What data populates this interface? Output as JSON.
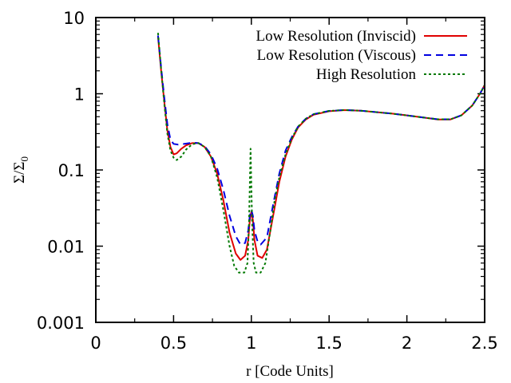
{
  "chart_data": {
    "type": "line",
    "xlabel": "r [Code Units]",
    "ylabel": "Σ/Σ",
    "ylabel_sub": "0",
    "xlim": [
      0,
      2.5
    ],
    "ylim": [
      0.001,
      10
    ],
    "yscale": "log",
    "x_ticks": [
      0,
      0.5,
      1,
      1.5,
      2,
      2.5
    ],
    "x_tick_labels": [
      "0",
      "0.5",
      "1",
      "1.5",
      "2",
      "2.5"
    ],
    "y_ticks": [
      0.001,
      0.01,
      0.1,
      1,
      10
    ],
    "y_tick_labels": [
      "0.001",
      "0.01",
      "0.1",
      "1",
      "10"
    ],
    "grid": false,
    "legend_position": "top-right",
    "series": [
      {
        "name": "Low Resolution (Inviscid)",
        "color": "#e00000",
        "dash": "solid",
        "points": [
          [
            0.4,
            5.6
          ],
          [
            0.42,
            2.0
          ],
          [
            0.44,
            0.8
          ],
          [
            0.46,
            0.33
          ],
          [
            0.48,
            0.2
          ],
          [
            0.5,
            0.16
          ],
          [
            0.52,
            0.165
          ],
          [
            0.55,
            0.19
          ],
          [
            0.58,
            0.21
          ],
          [
            0.62,
            0.225
          ],
          [
            0.66,
            0.225
          ],
          [
            0.7,
            0.2
          ],
          [
            0.74,
            0.15
          ],
          [
            0.78,
            0.09
          ],
          [
            0.82,
            0.04
          ],
          [
            0.86,
            0.015
          ],
          [
            0.9,
            0.008
          ],
          [
            0.93,
            0.0066
          ],
          [
            0.96,
            0.0075
          ],
          [
            0.98,
            0.012
          ],
          [
            0.99,
            0.022
          ],
          [
            1.0,
            0.028
          ],
          [
            1.01,
            0.022
          ],
          [
            1.02,
            0.012
          ],
          [
            1.04,
            0.0075
          ],
          [
            1.07,
            0.007
          ],
          [
            1.1,
            0.009
          ],
          [
            1.14,
            0.025
          ],
          [
            1.18,
            0.07
          ],
          [
            1.22,
            0.15
          ],
          [
            1.26,
            0.25
          ],
          [
            1.3,
            0.36
          ],
          [
            1.35,
            0.46
          ],
          [
            1.4,
            0.53
          ],
          [
            1.5,
            0.59
          ],
          [
            1.6,
            0.61
          ],
          [
            1.7,
            0.6
          ],
          [
            1.8,
            0.575
          ],
          [
            1.9,
            0.55
          ],
          [
            2.0,
            0.52
          ],
          [
            2.1,
            0.49
          ],
          [
            2.2,
            0.46
          ],
          [
            2.28,
            0.46
          ],
          [
            2.35,
            0.52
          ],
          [
            2.42,
            0.7
          ],
          [
            2.47,
            1.0
          ],
          [
            2.5,
            1.3
          ]
        ]
      },
      {
        "name": "Low Resolution (Viscous)",
        "color": "#0000e0",
        "dash": "9,6",
        "points": [
          [
            0.4,
            5.8
          ],
          [
            0.42,
            2.2
          ],
          [
            0.44,
            0.9
          ],
          [
            0.46,
            0.4
          ],
          [
            0.48,
            0.25
          ],
          [
            0.5,
            0.22
          ],
          [
            0.53,
            0.215
          ],
          [
            0.57,
            0.22
          ],
          [
            0.62,
            0.228
          ],
          [
            0.66,
            0.225
          ],
          [
            0.7,
            0.205
          ],
          [
            0.74,
            0.16
          ],
          [
            0.78,
            0.105
          ],
          [
            0.82,
            0.055
          ],
          [
            0.86,
            0.025
          ],
          [
            0.9,
            0.0135
          ],
          [
            0.93,
            0.0105
          ],
          [
            0.96,
            0.011
          ],
          [
            0.98,
            0.016
          ],
          [
            0.99,
            0.025
          ],
          [
            1.0,
            0.03
          ],
          [
            1.01,
            0.025
          ],
          [
            1.02,
            0.016
          ],
          [
            1.04,
            0.0115
          ],
          [
            1.06,
            0.0105
          ],
          [
            1.1,
            0.013
          ],
          [
            1.14,
            0.035
          ],
          [
            1.18,
            0.09
          ],
          [
            1.22,
            0.18
          ],
          [
            1.26,
            0.27
          ],
          [
            1.3,
            0.37
          ],
          [
            1.35,
            0.47
          ],
          [
            1.4,
            0.54
          ],
          [
            1.5,
            0.595
          ],
          [
            1.6,
            0.612
          ],
          [
            1.7,
            0.6
          ],
          [
            1.8,
            0.575
          ],
          [
            1.9,
            0.55
          ],
          [
            2.0,
            0.52
          ],
          [
            2.1,
            0.49
          ],
          [
            2.2,
            0.462
          ],
          [
            2.28,
            0.462
          ],
          [
            2.35,
            0.52
          ],
          [
            2.42,
            0.7
          ],
          [
            2.47,
            1.0
          ],
          [
            2.5,
            1.3
          ]
        ]
      },
      {
        "name": "High Resolution",
        "color": "#007800",
        "dash": "3,3",
        "points": [
          [
            0.4,
            6.3
          ],
          [
            0.42,
            2.1
          ],
          [
            0.44,
            0.75
          ],
          [
            0.46,
            0.3
          ],
          [
            0.48,
            0.18
          ],
          [
            0.5,
            0.145
          ],
          [
            0.52,
            0.135
          ],
          [
            0.55,
            0.15
          ],
          [
            0.58,
            0.185
          ],
          [
            0.62,
            0.218
          ],
          [
            0.66,
            0.225
          ],
          [
            0.7,
            0.2
          ],
          [
            0.74,
            0.15
          ],
          [
            0.78,
            0.08
          ],
          [
            0.82,
            0.03
          ],
          [
            0.86,
            0.01
          ],
          [
            0.89,
            0.0055
          ],
          [
            0.92,
            0.0045
          ],
          [
            0.955,
            0.0045
          ],
          [
            0.975,
            0.006
          ],
          [
            0.985,
            0.02
          ],
          [
            0.995,
            0.19
          ],
          [
            1.005,
            0.02
          ],
          [
            1.015,
            0.006
          ],
          [
            1.03,
            0.0045
          ],
          [
            1.06,
            0.0045
          ],
          [
            1.09,
            0.006
          ],
          [
            1.12,
            0.015
          ],
          [
            1.15,
            0.04
          ],
          [
            1.18,
            0.08
          ],
          [
            1.22,
            0.16
          ],
          [
            1.26,
            0.26
          ],
          [
            1.3,
            0.37
          ],
          [
            1.35,
            0.47
          ],
          [
            1.4,
            0.54
          ],
          [
            1.5,
            0.595
          ],
          [
            1.6,
            0.612
          ],
          [
            1.7,
            0.6
          ],
          [
            1.8,
            0.575
          ],
          [
            1.9,
            0.55
          ],
          [
            2.0,
            0.52
          ],
          [
            2.1,
            0.49
          ],
          [
            2.2,
            0.462
          ],
          [
            2.28,
            0.462
          ],
          [
            2.35,
            0.52
          ],
          [
            2.42,
            0.7
          ],
          [
            2.47,
            1.0
          ],
          [
            2.5,
            1.3
          ]
        ]
      }
    ]
  }
}
